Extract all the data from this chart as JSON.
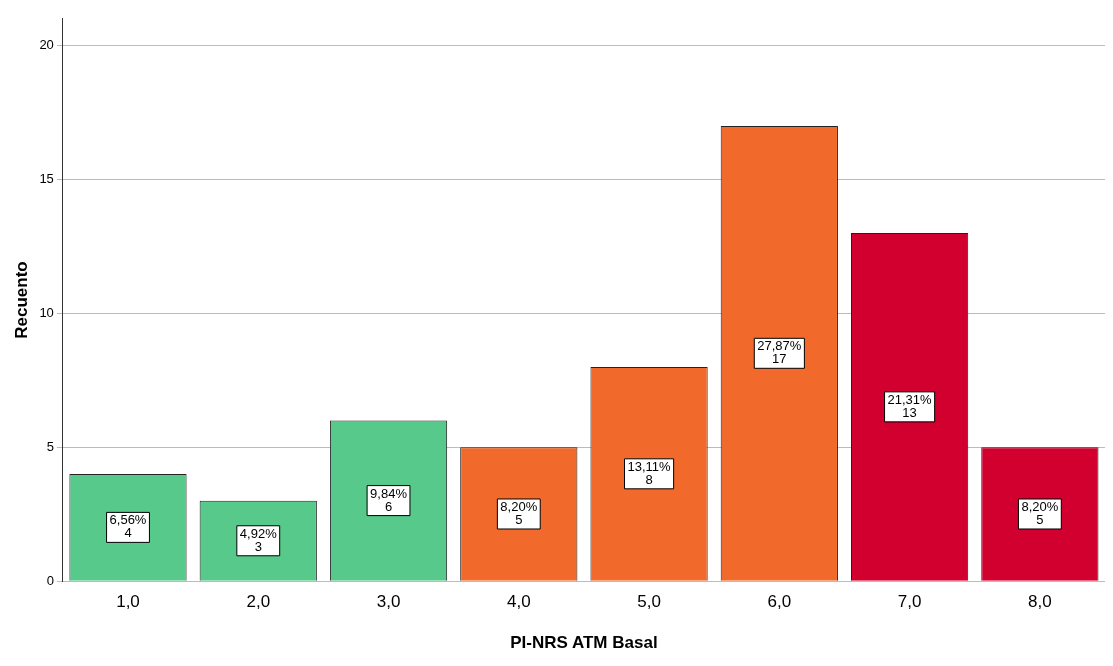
{
  "chart_data": {
    "type": "bar",
    "xlabel": "PI-NRS ATM Basal",
    "ylabel": "Recuento",
    "categories": [
      "1,0",
      "2,0",
      "3,0",
      "4,0",
      "5,0",
      "6,0",
      "7,0",
      "8,0"
    ],
    "values": [
      4,
      3,
      6,
      5,
      8,
      17,
      13,
      5
    ],
    "colors": [
      "#57c98a",
      "#57c98a",
      "#57c98a",
      "#f26a2b",
      "#f26a2b",
      "#f26a2b",
      "#d2002f",
      "#d2002f"
    ],
    "value_labels": [
      "6,56%\n4",
      "4,92%\n3",
      "9,84%\n6",
      "8,20%\n5",
      "13,11%\n8",
      "27,87%\n17",
      "21,31%\n13",
      "8,20%\n5"
    ],
    "ylim": [
      0,
      21
    ],
    "yticks": [
      0,
      5,
      10,
      15,
      20
    ],
    "grid": "y",
    "legend": false
  }
}
